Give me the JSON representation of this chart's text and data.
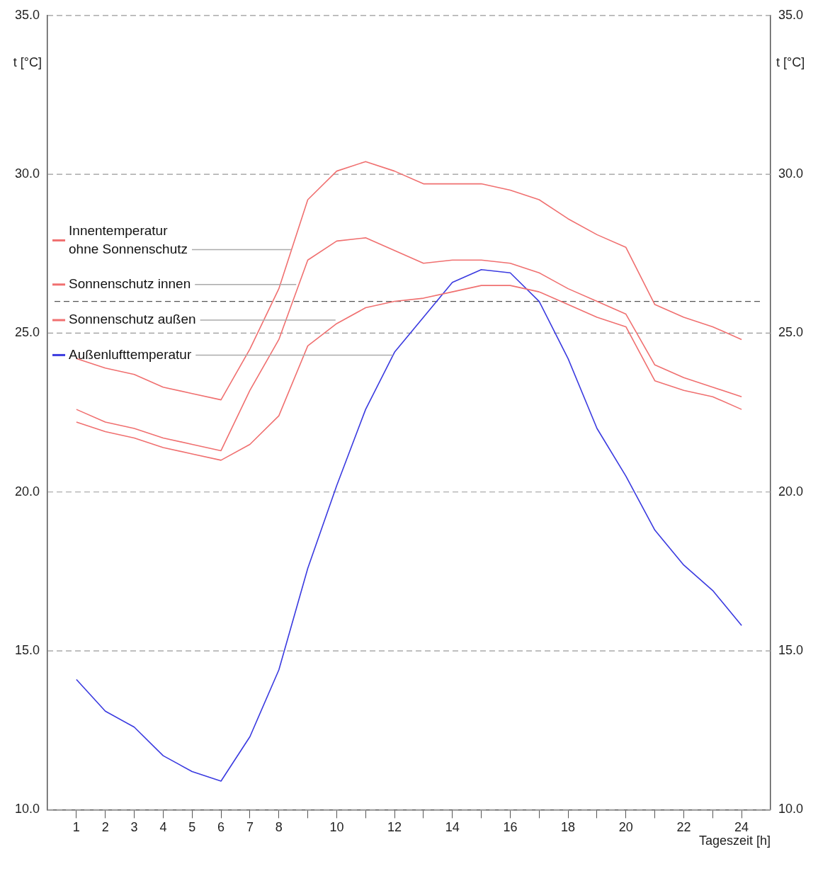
{
  "chart_data": {
    "type": "line",
    "xlabel": "Tageszeit [h]",
    "ylabel": "t [°C]",
    "y2label": "t [°C]",
    "x": [
      1,
      2,
      3,
      4,
      5,
      6,
      7,
      8,
      9,
      10,
      11,
      12,
      13,
      14,
      15,
      16,
      17,
      18,
      19,
      20,
      21,
      22,
      23,
      24
    ],
    "xlim": [
      0,
      25
    ],
    "xticks": [
      1,
      2,
      3,
      4,
      5,
      6,
      7,
      8,
      {
        "value": 9,
        "label": null
      },
      10,
      {
        "value": 11,
        "label": null
      },
      12,
      {
        "value": 13,
        "label": null
      },
      14,
      {
        "value": 15,
        "label": null
      },
      16,
      {
        "value": 17,
        "label": null
      },
      18,
      {
        "value": 19,
        "label": null
      },
      20,
      {
        "value": 21,
        "label": null
      },
      22,
      {
        "value": 23,
        "label": null
      },
      24
    ],
    "ylim": [
      10,
      35
    ],
    "yticks": [
      {
        "value": 10,
        "label": "10.0"
      },
      {
        "value": 15,
        "label": "15.0"
      },
      {
        "value": 20,
        "label": "20.0"
      },
      {
        "value": 25,
        "label": "25.0"
      },
      {
        "value": 30,
        "label": "30.0"
      },
      {
        "value": 35,
        "label": "35.0"
      }
    ],
    "y2lim": [
      10,
      35
    ],
    "y2ticks": [
      {
        "value": 10,
        "label": "10.0"
      },
      {
        "value": 15,
        "label": "15.0"
      },
      {
        "value": 20,
        "label": "20.0"
      },
      {
        "value": 25,
        "label": "25.0"
      },
      {
        "value": 30,
        "label": "30.0"
      },
      {
        "value": 35,
        "label": "35.0"
      }
    ],
    "grid": "y",
    "legend": "left",
    "marker": "none",
    "line_style": "solid",
    "ref_lines": [
      {
        "axis": "y",
        "value": 26,
        "color": "#555555",
        "line_style": "dashed"
      }
    ],
    "series": [
      {
        "name": "Innentemperatur\nohne Sonnenschutz",
        "color": "#f07070",
        "values": [
          24.2,
          23.9,
          23.7,
          23.3,
          23.1,
          22.9,
          24.5,
          26.4,
          29.2,
          30.1,
          30.4,
          30.1,
          29.7,
          29.7,
          29.7,
          29.5,
          29.2,
          28.6,
          28.1,
          27.7,
          25.9,
          25.5,
          25.2,
          24.8
        ]
      },
      {
        "name": "Sonnenschutz innen",
        "color": "#f07070",
        "values": [
          22.6,
          22.2,
          22.0,
          21.7,
          21.5,
          21.3,
          23.2,
          24.8,
          27.3,
          27.9,
          28.0,
          27.6,
          27.2,
          27.3,
          27.3,
          27.2,
          26.9,
          26.4,
          26.0,
          25.6,
          24.0,
          23.6,
          23.3,
          23.0
        ]
      },
      {
        "name": "Sonnenschutz außen",
        "color": "#f07070",
        "values": [
          22.2,
          21.9,
          21.7,
          21.4,
          21.2,
          21.0,
          21.5,
          22.4,
          24.6,
          25.3,
          25.8,
          26.0,
          26.1,
          26.3,
          26.5,
          26.5,
          26.3,
          25.9,
          25.5,
          25.2,
          23.5,
          23.2,
          23.0,
          22.6
        ]
      },
      {
        "name": "Außenlufttemperatur",
        "color": "#3a3ae0",
        "values": [
          14.1,
          13.1,
          12.6,
          11.7,
          11.2,
          10.9,
          12.3,
          14.4,
          17.6,
          20.2,
          22.6,
          24.4,
          25.5,
          26.6,
          27.0,
          26.9,
          26.0,
          24.2,
          22.0,
          20.5,
          18.8,
          17.7,
          16.9,
          15.8
        ]
      }
    ]
  }
}
